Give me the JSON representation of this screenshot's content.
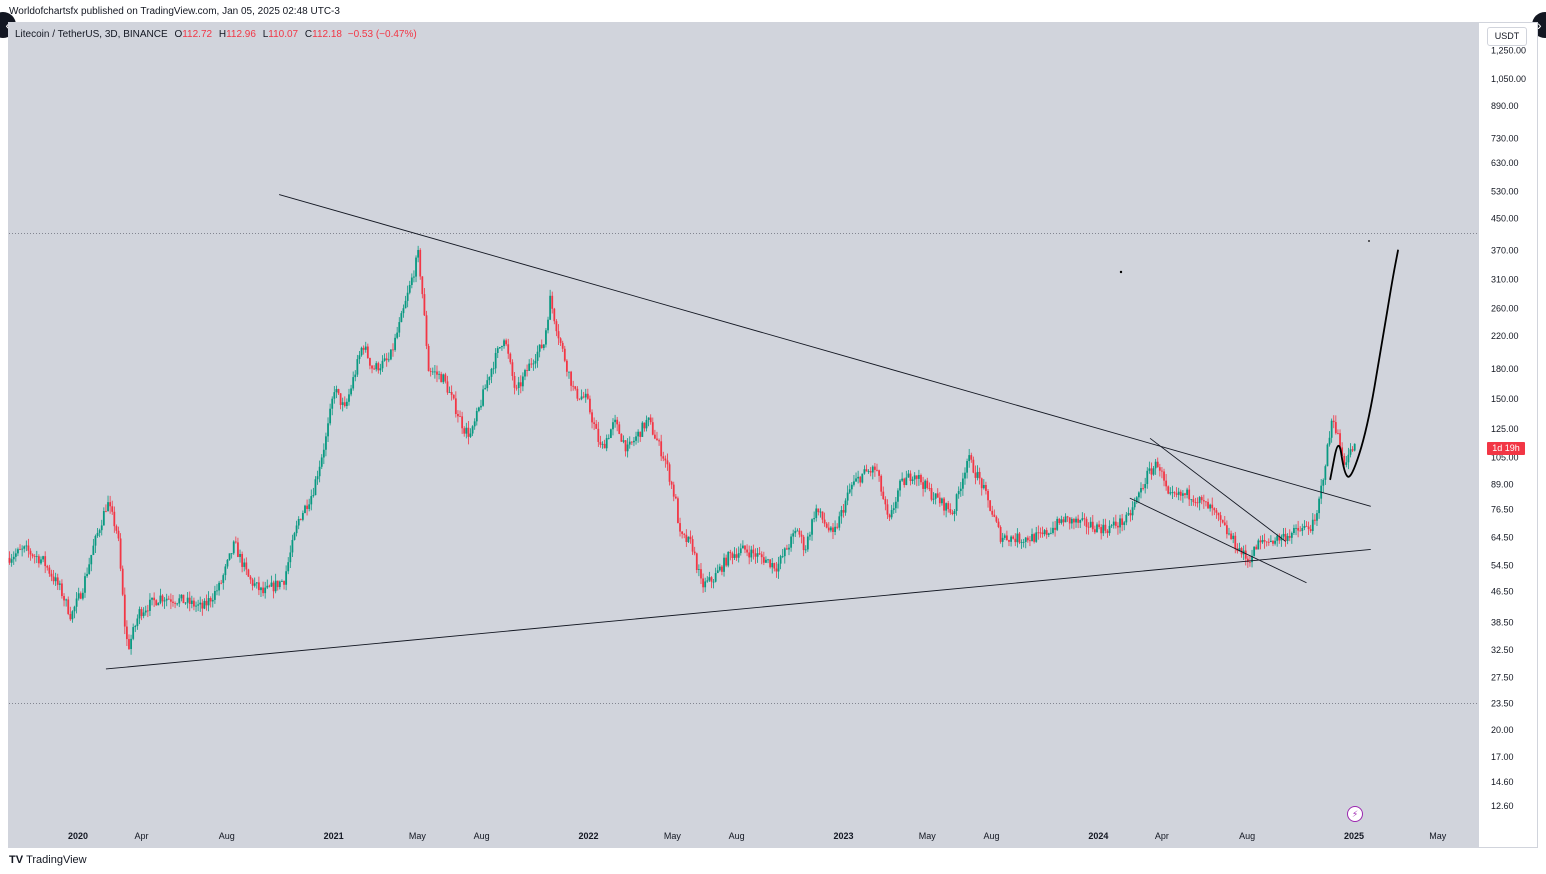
{
  "header": {
    "published_by": "Worldofchartsfx published on TradingView.com, Jan 05, 2025 02:48 UTC-3"
  },
  "legend": {
    "symbol": "Litecoin / TetherUS, 3D, BINANCE",
    "open_label": "O",
    "open": "112.72",
    "high_label": "H",
    "high": "112.96",
    "low_label": "L",
    "low": "110.07",
    "close_label": "C",
    "close": "112.18",
    "change": "−0.53 (−0.47%)"
  },
  "currency": "USDT",
  "last_price_tag": "1d 19h",
  "footer": {
    "logo": "TV",
    "brand": "TradingView"
  },
  "colors": {
    "up": "#089981",
    "down": "#f23645",
    "background": "#d1d4dc",
    "line": "#131722"
  },
  "icons": [
    "chevron-left-icon",
    "chevron-right-icon",
    "flash-icon",
    "tradingview-logo-icon"
  ],
  "chart_data": {
    "type": "candlestick",
    "yscale": "log",
    "grid": false,
    "ylim": [
      11.5,
      1300
    ],
    "y_ticks": [
      "1,250.00",
      "1,050.00",
      "890.00",
      "730.00",
      "630.00",
      "530.00",
      "450.00",
      "370.00",
      "310.00",
      "260.00",
      "220.00",
      "180.00",
      "150.00",
      "125.00",
      "105.00",
      "89.00",
      "76.50",
      "64.50",
      "54.50",
      "46.50",
      "38.50",
      "32.50",
      "27.50",
      "23.50",
      "20.00",
      "17.00",
      "14.60",
      "12.60"
    ],
    "x_ticks": [
      {
        "label": "2020",
        "date": "2020-01-01",
        "bold": true
      },
      {
        "label": "Apr",
        "date": "2020-04-01"
      },
      {
        "label": "Aug",
        "date": "2020-08-01"
      },
      {
        "label": "2021",
        "date": "2021-01-01",
        "bold": true
      },
      {
        "label": "May",
        "date": "2021-05-01"
      },
      {
        "label": "Aug",
        "date": "2021-08-01"
      },
      {
        "label": "2022",
        "date": "2022-01-01",
        "bold": true
      },
      {
        "label": "May",
        "date": "2022-05-01"
      },
      {
        "label": "Aug",
        "date": "2022-08-01"
      },
      {
        "label": "2023",
        "date": "2023-01-01",
        "bold": true
      },
      {
        "label": "May",
        "date": "2023-05-01"
      },
      {
        "label": "Aug",
        "date": "2023-08-01"
      },
      {
        "label": "2024",
        "date": "2024-01-01",
        "bold": true
      },
      {
        "label": "Apr",
        "date": "2024-04-01"
      },
      {
        "label": "Aug",
        "date": "2024-08-01"
      },
      {
        "label": "2025",
        "date": "2025-01-01",
        "bold": true
      },
      {
        "label": "May",
        "date": "2025-05-01"
      }
    ],
    "price_path": [
      [
        "2019-09-25",
        57
      ],
      [
        "2019-10-20",
        60
      ],
      [
        "2019-11-15",
        56
      ],
      [
        "2019-12-10",
        47
      ],
      [
        "2019-12-25",
        40
      ],
      [
        "2020-01-10",
        47
      ],
      [
        "2020-01-25",
        60
      ],
      [
        "2020-02-15",
        80
      ],
      [
        "2020-03-01",
        66
      ],
      [
        "2020-03-12",
        36
      ],
      [
        "2020-03-16",
        33
      ],
      [
        "2020-04-01",
        41
      ],
      [
        "2020-05-01",
        45
      ],
      [
        "2020-06-01",
        44
      ],
      [
        "2020-07-01",
        42
      ],
      [
        "2020-07-25",
        48
      ],
      [
        "2020-08-15",
        62
      ],
      [
        "2020-09-05",
        50
      ],
      [
        "2020-09-25",
        46
      ],
      [
        "2020-10-25",
        50
      ],
      [
        "2020-11-15",
        72
      ],
      [
        "2020-12-05",
        85
      ],
      [
        "2020-12-25",
        120
      ],
      [
        "2021-01-05",
        160
      ],
      [
        "2021-01-20",
        140
      ],
      [
        "2021-02-15",
        210
      ],
      [
        "2021-03-01",
        180
      ],
      [
        "2021-03-25",
        190
      ],
      [
        "2021-04-15",
        260
      ],
      [
        "2021-05-05",
        360
      ],
      [
        "2021-05-10",
        300
      ],
      [
        "2021-05-20",
        180
      ],
      [
        "2021-06-10",
        170
      ],
      [
        "2021-07-10",
        125
      ],
      [
        "2021-07-20",
        120
      ],
      [
        "2021-08-15",
        175
      ],
      [
        "2021-09-05",
        220
      ],
      [
        "2021-09-22",
        155
      ],
      [
        "2021-10-15",
        190
      ],
      [
        "2021-11-01",
        210
      ],
      [
        "2021-11-10",
        275
      ],
      [
        "2021-11-25",
        210
      ],
      [
        "2021-12-15",
        155
      ],
      [
        "2022-01-01",
        150
      ],
      [
        "2022-01-22",
        110
      ],
      [
        "2022-02-10",
        130
      ],
      [
        "2022-03-01",
        110
      ],
      [
        "2022-03-30",
        132
      ],
      [
        "2022-04-25",
        102
      ],
      [
        "2022-05-09",
        80
      ],
      [
        "2022-05-15",
        65
      ],
      [
        "2022-06-01",
        62
      ],
      [
        "2022-06-15",
        48
      ],
      [
        "2022-07-01",
        50
      ],
      [
        "2022-07-25",
        58
      ],
      [
        "2022-08-15",
        60
      ],
      [
        "2022-09-10",
        57
      ],
      [
        "2022-10-01",
        54
      ],
      [
        "2022-10-30",
        68
      ],
      [
        "2022-11-10",
        60
      ],
      [
        "2022-11-25",
        77
      ],
      [
        "2022-12-20",
        65
      ],
      [
        "2023-01-15",
        88
      ],
      [
        "2023-02-01",
        95
      ],
      [
        "2023-02-20",
        98
      ],
      [
        "2023-03-10",
        70
      ],
      [
        "2023-03-25",
        88
      ],
      [
        "2023-04-15",
        96
      ],
      [
        "2023-05-10",
        84
      ],
      [
        "2023-06-10",
        75
      ],
      [
        "2023-07-01",
        105
      ],
      [
        "2023-07-20",
        90
      ],
      [
        "2023-08-17",
        65
      ],
      [
        "2023-09-15",
        64
      ],
      [
        "2023-10-15",
        65
      ],
      [
        "2023-11-15",
        72
      ],
      [
        "2023-12-15",
        70
      ],
      [
        "2024-01-15",
        68
      ],
      [
        "2024-02-15",
        72
      ],
      [
        "2024-03-15",
        95
      ],
      [
        "2024-03-30",
        102
      ],
      [
        "2024-04-13",
        82
      ],
      [
        "2024-05-15",
        84
      ],
      [
        "2024-06-15",
        76
      ],
      [
        "2024-07-10",
        65
      ],
      [
        "2024-08-05",
        56
      ],
      [
        "2024-08-20",
        62
      ],
      [
        "2024-09-15",
        64
      ],
      [
        "2024-10-15",
        67
      ],
      [
        "2024-11-10",
        70
      ],
      [
        "2024-11-20",
        92
      ],
      [
        "2024-12-05",
        136
      ],
      [
        "2024-12-20",
        102
      ],
      [
        "2025-01-04",
        112
      ]
    ],
    "drawings": {
      "resistance_line": [
        [
          "2020-10-15",
          520
        ],
        [
          "2025-01-25",
          78
        ]
      ],
      "support_line": [
        [
          "2020-02-10",
          29
        ],
        [
          "2025-01-25",
          60
        ]
      ],
      "falling_channel_upper": [
        [
          "2024-03-15",
          118
        ],
        [
          "2024-09-25",
          63
        ]
      ],
      "falling_channel_lower": [
        [
          "2024-02-15",
          82
        ],
        [
          "2024-10-25",
          49
        ]
      ],
      "horizontal_high": 410,
      "horizontal_low": 23.5,
      "projection": [
        [
          "2024-11-28",
          92
        ],
        [
          "2024-12-10",
          120
        ],
        [
          "2024-12-18",
          95
        ],
        [
          "2024-12-28",
          92
        ],
        [
          "2025-01-20",
          125
        ],
        [
          "2025-02-10",
          210
        ],
        [
          "2025-02-25",
          310
        ],
        [
          "2025-03-05",
          370
        ]
      ]
    }
  }
}
